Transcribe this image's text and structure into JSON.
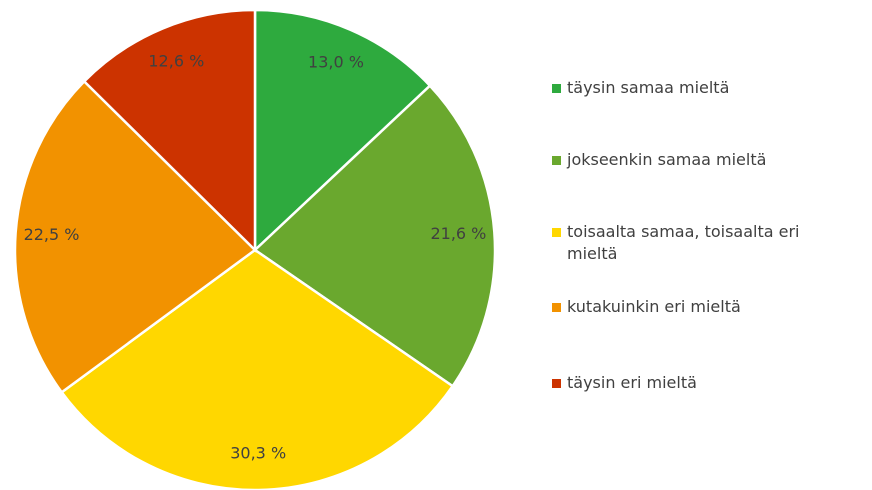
{
  "chart_data": {
    "type": "pie",
    "categories": [
      "täysin samaa mieltä",
      "jokseenkin samaa mieltä",
      "toisaalta samaa, toisaalta eri mieltä",
      "kutakuinkin eri mieltä",
      "täysin eri mieltä"
    ],
    "values": [
      13.0,
      21.6,
      30.3,
      22.5,
      12.6
    ],
    "value_labels": [
      "13,0 %",
      "21,6 %",
      "30,3 %",
      "22,5 %",
      "12,6 %"
    ],
    "colors": [
      "#2eaa3e",
      "#6aa82e",
      "#ffd700",
      "#f29200",
      "#cc3300"
    ],
    "legend": "right"
  }
}
